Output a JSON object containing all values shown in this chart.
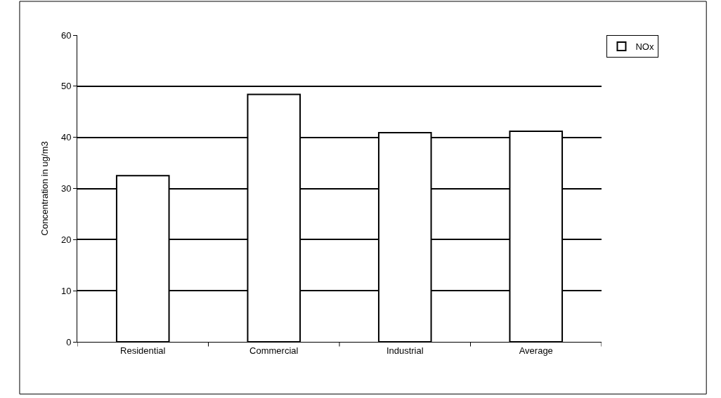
{
  "chart_data": {
    "type": "bar",
    "ylabel": "Concentration in ug/m3",
    "categories": [
      "Residential",
      "Commercial",
      "Industrial",
      "Average"
    ],
    "series": [
      {
        "name": "NOx",
        "color": "#ffffff",
        "values": [
          32.5,
          48.4,
          40.9,
          41.2
        ]
      }
    ],
    "ylim": [
      0,
      60
    ],
    "yticks": [
      0,
      10,
      20,
      30,
      40,
      50,
      60
    ],
    "grid": "y",
    "legend": "top right"
  }
}
